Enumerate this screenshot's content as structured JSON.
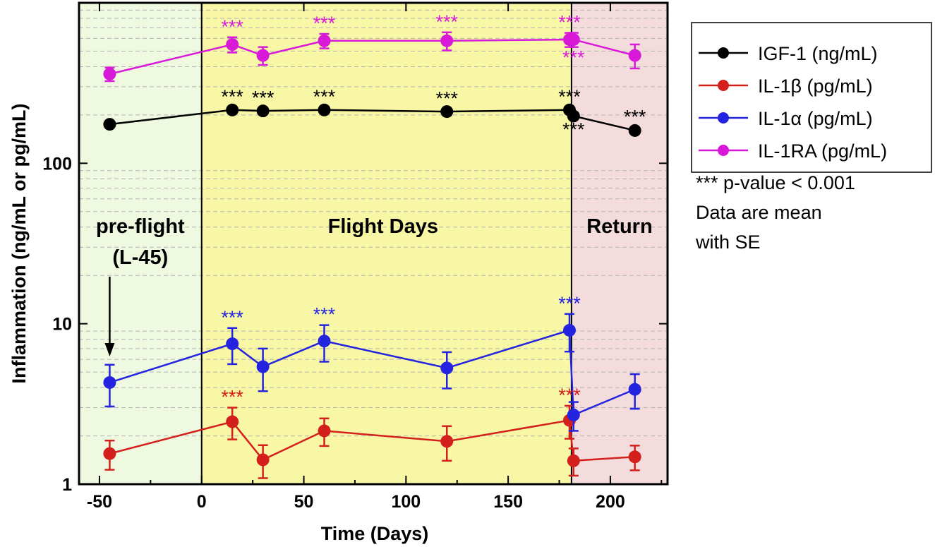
{
  "chart_data": {
    "type": "line",
    "title": "",
    "xlabel": "Time (Days)",
    "ylabel": "Inflammation (ng/mL or pg/mL)",
    "xlim": [
      -60,
      228
    ],
    "ylim": [
      1,
      1000
    ],
    "y_scale": "log",
    "grid": "horizontal dashed minor lines",
    "x_ticks": [
      -50,
      0,
      50,
      100,
      150,
      200
    ],
    "x_tick_labels": [
      "-50",
      "0",
      "50",
      "100",
      "150",
      "200"
    ],
    "y_ticks": [
      1,
      10,
      100
    ],
    "y_tick_labels": [
      "1",
      "10",
      "100"
    ],
    "regions": [
      {
        "label_lines": [
          "pre-flight",
          "(L-45)"
        ],
        "x_start": -60,
        "x_end": 0,
        "color": "#eef9e0"
      },
      {
        "label_lines": [
          "Flight Days"
        ],
        "x_start": 0,
        "x_end": 181,
        "color": "#f7f7a6"
      },
      {
        "label_lines": [
          "Return"
        ],
        "x_start": 181,
        "x_end": 228,
        "color": "#f5dcdc"
      }
    ],
    "x": [
      -45,
      15,
      30,
      60,
      120,
      180,
      182,
      212
    ],
    "series": [
      {
        "name": "IGF-1 (ng/mL)",
        "color": "#000000",
        "values": [
          175,
          215,
          212,
          215,
          210,
          215,
          197,
          160
        ],
        "errors": [
          6,
          8,
          8,
          8,
          8,
          8,
          8,
          7
        ]
      },
      {
        "name": "IL-1β (pg/mL)",
        "color": "#d4201c",
        "values": [
          1.55,
          2.45,
          1.42,
          2.15,
          1.85,
          2.5,
          1.4,
          1.48
        ],
        "errors": [
          0.32,
          0.55,
          0.33,
          0.42,
          0.45,
          0.58,
          0.27,
          0.26
        ]
      },
      {
        "name": "IL-1α (pg/mL)",
        "color": "#2323e0",
        "values": [
          4.3,
          7.5,
          5.4,
          7.8,
          5.3,
          9.1,
          2.7,
          3.9
        ],
        "errors": [
          1.25,
          1.9,
          1.6,
          2.0,
          1.35,
          2.4,
          0.55,
          0.95
        ]
      },
      {
        "name": "IL-1RA (pg/mL)",
        "color": "#d81ad8",
        "values": [
          360,
          550,
          470,
          580,
          580,
          590,
          590,
          470
        ],
        "errors": [
          35,
          60,
          60,
          60,
          75,
          60,
          60,
          80
        ]
      }
    ],
    "significance_markers": [
      {
        "series": 0,
        "x": 15,
        "position": "above"
      },
      {
        "series": 0,
        "x": 30,
        "position": "above"
      },
      {
        "series": 0,
        "x": 60,
        "position": "above"
      },
      {
        "series": 0,
        "x": 120,
        "position": "above"
      },
      {
        "series": 0,
        "x": 180,
        "position": "above"
      },
      {
        "series": 0,
        "x": 182,
        "position": "below"
      },
      {
        "series": 0,
        "x": 212,
        "position": "above"
      },
      {
        "series": 1,
        "x": 15,
        "position": "above"
      },
      {
        "series": 1,
        "x": 180,
        "position": "above"
      },
      {
        "series": 2,
        "x": 15,
        "position": "above"
      },
      {
        "series": 2,
        "x": 60,
        "position": "above"
      },
      {
        "series": 2,
        "x": 180,
        "position": "above"
      },
      {
        "series": 3,
        "x": 15,
        "position": "above"
      },
      {
        "series": 3,
        "x": 60,
        "position": "above"
      },
      {
        "series": 3,
        "x": 120,
        "position": "above"
      },
      {
        "series": 3,
        "x": 180,
        "position": "above"
      },
      {
        "series": 3,
        "x": 182,
        "position": "below"
      }
    ],
    "significance_symbol": "***",
    "annotation_arrow": {
      "from_region": 0,
      "points_to_x": -45
    },
    "legend_position": "right",
    "notes": [
      "*** p-value < 0.001",
      "Data are mean",
      "with SE"
    ]
  }
}
